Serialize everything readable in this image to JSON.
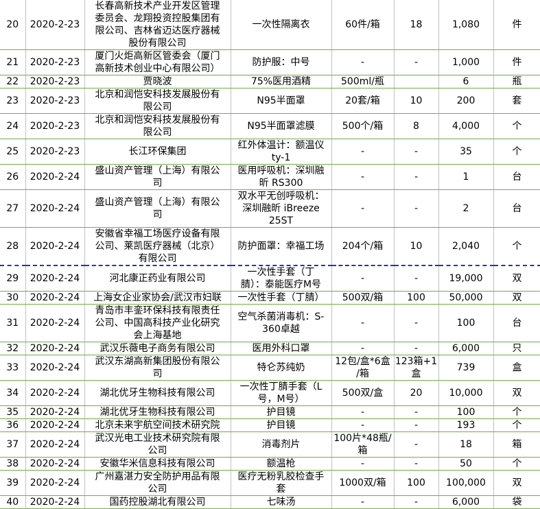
{
  "rows": [
    {
      "no": "20",
      "date": "2020-2-23",
      "donor": "长春高新技术产业开发区管理\n委员会、龙翔投资控股集团有\n限公司、吉林省迈达医疗器械\n股份有限公司",
      "item": "一次性隔离衣",
      "spec": "60件/箱",
      "qty": "18",
      "total": "1,080",
      "unit": "件"
    },
    {
      "no": "21",
      "date": "2020-2-23",
      "donor": "厦门火炬高新区管委会（厦门\n高新技术创业中心有限公司）",
      "item": "防护服：中号",
      "spec": "-",
      "qty": "-",
      "total": "1,000",
      "unit": "件"
    },
    {
      "no": "22",
      "date": "2020-2-23",
      "donor": "贾晓波",
      "item": "75%医用酒精",
      "spec": "500ml/瓶",
      "qty": "",
      "total": "6",
      "unit": "瓶"
    },
    {
      "no": "23",
      "date": "2020-2-23",
      "donor": "北京和润恺安科技发展股份有\n限公司",
      "item": "N95半面罩",
      "spec": "20套/箱",
      "qty": "10",
      "total": "200",
      "unit": "套"
    },
    {
      "no": "24",
      "date": "2020-2-23",
      "donor": "北京和润恺安科技发展股份有\n限公司",
      "item": "N95半面罩滤膜",
      "spec": "500个/箱",
      "qty": "8",
      "total": "4,000",
      "unit": "个"
    },
    {
      "no": "25",
      "date": "2020-2-23",
      "donor": "长江环保集团",
      "item": "红外体温计：额温仪\nty-1",
      "spec": "-",
      "qty": "-",
      "total": "35",
      "unit": "个"
    },
    {
      "no": "26",
      "date": "2020-2-24",
      "donor": "盛山资产管理（上海）有限公\n司",
      "item": "医用呼吸机：深圳融\n昕 RS300",
      "spec": "-",
      "qty": "-",
      "total": "1",
      "unit": "台"
    },
    {
      "no": "27",
      "date": "2020-2-24",
      "donor": "盛山资产管理（上海）有限公\n司",
      "item": "双水平无创呼吸机：\n深圳融昕 iBreeze\n25ST",
      "spec": "-",
      "qty": "-",
      "total": "2",
      "unit": "台"
    },
    {
      "no": "28",
      "date": "2020-2-24",
      "donor": "安徽省幸福工场医疗设备有限\n公司、莱凯医疗器械（北京）\n有限公司",
      "item": "防护面罩：幸福工场",
      "spec": "204个/箱",
      "qty": "10",
      "total": "2,040",
      "unit": "个"
    },
    {
      "no": "29",
      "date": "2020-2-24",
      "donor": "河北康正药业有限公司",
      "item": "一次性手套（丁\n腈）：泰能医疗M号",
      "spec": "-",
      "qty": "-",
      "total": "19,000",
      "unit": "双"
    },
    {
      "no": "30",
      "date": "2020-2-24",
      "donor": "上海女企业家协会/武汉市妇联",
      "item": "一次性手套（丁腈）",
      "spec": "500双/箱",
      "qty": "100",
      "total": "50,000",
      "unit": "双"
    },
    {
      "no": "31",
      "date": "2020-2-24",
      "donor": "青岛市丰銮环保科技有限责任\n公司、中国高科技产业化研究\n会上海基地",
      "item": "空气杀菌消毒机：S-\n360卓越",
      "spec": "-",
      "qty": "-",
      "total": "100",
      "unit": "台"
    },
    {
      "no": "32",
      "date": "2020-2-24",
      "donor": "武汉乐薇电子商务有限公司",
      "item": "医用外科口罩",
      "spec": "-",
      "qty": "-",
      "total": "6,000",
      "unit": "只"
    },
    {
      "no": "33",
      "date": "2020-2-24",
      "donor": "武汉东湖高新集团股份有限公\n司",
      "item": "特仑苏纯奶",
      "spec": "12包/盒*6盒\n/箱",
      "qty": "123箱+1\n盒",
      "total": "739",
      "unit": "盒"
    },
    {
      "no": "34",
      "date": "2020-2-24",
      "donor": "湖北优牙生物科技有限公司",
      "item": "一次性丁腈手套（L\n号，M号）",
      "spec": "500双/盒",
      "qty": "20",
      "total": "10,000",
      "unit": "双"
    },
    {
      "no": "35",
      "date": "2020-2-24",
      "donor": "湖北优牙生物科技有限公司",
      "item": "护目镜",
      "spec": "-",
      "qty": "-",
      "total": "100",
      "unit": "个"
    },
    {
      "no": "36",
      "date": "2020-2-24",
      "donor": "北京未来宇航空间技术研究院",
      "item": "护目镜",
      "spec": "-",
      "qty": "-",
      "total": "193",
      "unit": "个"
    },
    {
      "no": "37",
      "date": "2020-2-24",
      "donor": "武汉光电工业技术研究院有限\n公司",
      "item": "消毒剂片",
      "spec": "100片*48瓶/\n箱",
      "qty": "-",
      "total": "18",
      "unit": "箱"
    },
    {
      "no": "38",
      "date": "2020-2-24",
      "donor": "安徽华米信息科技有限公司",
      "item": "额温枪",
      "spec": "-",
      "qty": "-",
      "total": "50",
      "unit": "个"
    },
    {
      "no": "39",
      "date": "2020-2-24",
      "donor": "广州嘉湛力安全防护用品有限\n公司",
      "item": "医疗无粉乳胶检查手\n套",
      "spec": "1000双/箱",
      "qty": "100",
      "total": "100,000",
      "unit": "双"
    },
    {
      "no": "40",
      "date": "2020-2-24",
      "donor": "国药控股湖北有限公司",
      "item": "七味汤",
      "spec": "-",
      "qty": "-",
      "total": "6,000",
      "unit": "袋"
    }
  ]
}
